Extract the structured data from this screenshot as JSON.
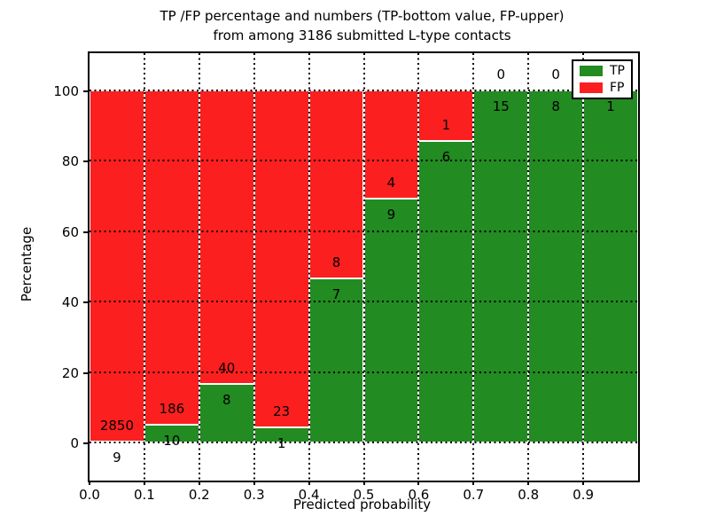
{
  "figure": {
    "title_line1": "TP /FP percentage and numbers (TP-bottom value, FP-upper)",
    "title_line2": "from among 3186 submitted L-type contacts"
  },
  "axes": {
    "xlabel": "Predicted probability",
    "ylabel": "Percentage",
    "x_tick_labels": [
      "0.0",
      "0.1",
      "0.2",
      "0.3",
      "0.4",
      "0.5",
      "0.6",
      "0.7",
      "0.8",
      "0.9"
    ],
    "y_tick_labels": [
      "0",
      "20",
      "40",
      "60",
      "80",
      "100"
    ]
  },
  "legend": {
    "items": [
      {
        "label": "TP",
        "color": "#228B22"
      },
      {
        "label": "FP",
        "color": "#FC1F1F"
      }
    ]
  },
  "chart_data": {
    "type": "bar",
    "subtype": "stacked-percentage",
    "title": "TP /FP percentage and numbers (TP-bottom value, FP-upper) from among 3186 submitted L-type contacts",
    "xlabel": "Predicted probability",
    "ylabel": "Percentage",
    "bin_edges": [
      0.0,
      0.1,
      0.2,
      0.3,
      0.4,
      0.5,
      0.6,
      0.7,
      0.8,
      0.9,
      1.0
    ],
    "categories": [
      "0.0-0.1",
      "0.1-0.2",
      "0.2-0.3",
      "0.3-0.4",
      "0.4-0.5",
      "0.5-0.6",
      "0.6-0.7",
      "0.7-0.8",
      "0.8-0.9",
      "0.9-1.0"
    ],
    "series": [
      {
        "name": "TP",
        "color": "#228B22",
        "counts": [
          9,
          10,
          8,
          1,
          7,
          9,
          6,
          15,
          8,
          1
        ]
      },
      {
        "name": "FP",
        "color": "#FC1F1F",
        "counts": [
          2850,
          186,
          40,
          23,
          8,
          4,
          1,
          0,
          0,
          0
        ]
      }
    ],
    "tp_percent": [
      0.31,
      5.1,
      16.67,
      4.17,
      46.67,
      69.23,
      85.71,
      100,
      100,
      100
    ],
    "total_contacts": 3186,
    "xlim": [
      0.0,
      1.0
    ],
    "ylim": [
      -10.8,
      109.3
    ],
    "grid": true,
    "grid_style": "dotted",
    "legend_position": "upper right",
    "notes": "FP count label of last bin hidden behind legend"
  }
}
